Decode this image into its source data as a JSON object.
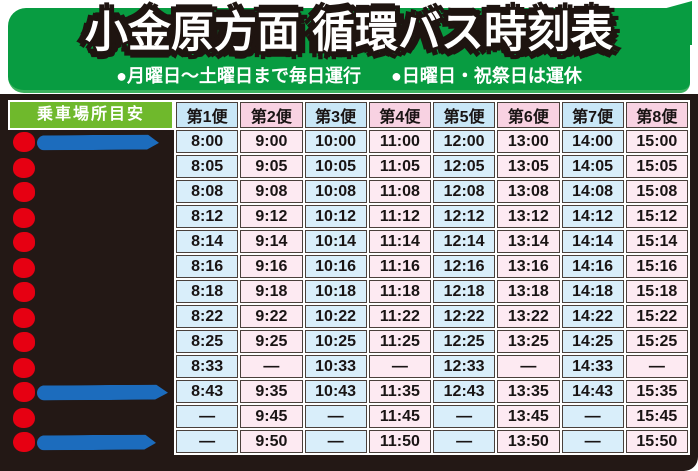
{
  "banner": {
    "title": "小金原方面 循環バス時刻表",
    "subtitle_left": "●月曜日〜土曜日まで毎日運行",
    "subtitle_right": "●日曜日・祝祭日は運休"
  },
  "timetable": {
    "location_header": "乗車場所目安",
    "trip_headers": [
      "第1便",
      "第2便",
      "第3便",
      "第4便",
      "第5便",
      "第6便",
      "第7便",
      "第8便"
    ],
    "no_service_symbol": "—",
    "rows": [
      {
        "stop_marker": true,
        "stop_name_redacted": true,
        "redaction_width": 122,
        "times": [
          "8:00",
          "9:00",
          "10:00",
          "11:00",
          "12:00",
          "13:00",
          "14:00",
          "15:00"
        ]
      },
      {
        "stop_marker": true,
        "stop_name_redacted": false,
        "times": [
          "8:05",
          "9:05",
          "10:05",
          "11:05",
          "12:05",
          "13:05",
          "14:05",
          "15:05"
        ]
      },
      {
        "stop_marker": true,
        "stop_name_redacted": false,
        "times": [
          "8:08",
          "9:08",
          "10:08",
          "11:08",
          "12:08",
          "13:08",
          "14:08",
          "15:08"
        ]
      },
      {
        "stop_marker": true,
        "stop_name_redacted": false,
        "times": [
          "8:12",
          "9:12",
          "10:12",
          "11:12",
          "12:12",
          "13:12",
          "14:12",
          "15:12"
        ]
      },
      {
        "stop_marker": true,
        "stop_name_redacted": false,
        "times": [
          "8:14",
          "9:14",
          "10:14",
          "11:14",
          "12:14",
          "13:14",
          "14:14",
          "15:14"
        ]
      },
      {
        "stop_marker": true,
        "stop_name_redacted": false,
        "times": [
          "8:16",
          "9:16",
          "10:16",
          "11:16",
          "12:16",
          "13:16",
          "14:16",
          "15:16"
        ]
      },
      {
        "stop_marker": true,
        "stop_name_redacted": false,
        "times": [
          "8:18",
          "9:18",
          "10:18",
          "11:18",
          "12:18",
          "13:18",
          "14:18",
          "15:18"
        ]
      },
      {
        "stop_marker": true,
        "stop_name_redacted": false,
        "times": [
          "8:22",
          "9:22",
          "10:22",
          "11:22",
          "12:22",
          "13:22",
          "14:22",
          "15:22"
        ]
      },
      {
        "stop_marker": true,
        "stop_name_redacted": false,
        "times": [
          "8:25",
          "9:25",
          "10:25",
          "11:25",
          "12:25",
          "13:25",
          "14:25",
          "15:25"
        ]
      },
      {
        "stop_marker": true,
        "stop_name_redacted": false,
        "times": [
          "8:33",
          "—",
          "10:33",
          "—",
          "12:33",
          "—",
          "14:33",
          "—"
        ]
      },
      {
        "stop_marker": true,
        "stop_name_redacted": true,
        "redaction_width": 131,
        "times": [
          "8:43",
          "9:35",
          "10:43",
          "11:35",
          "12:43",
          "13:35",
          "14:43",
          "15:35"
        ]
      },
      {
        "stop_marker": true,
        "stop_name_redacted": false,
        "times": [
          "—",
          "9:45",
          "—",
          "11:45",
          "—",
          "13:45",
          "—",
          "15:45"
        ]
      },
      {
        "stop_marker": true,
        "stop_name_redacted": true,
        "redaction_width": 119,
        "times": [
          "—",
          "9:50",
          "—",
          "11:50",
          "—",
          "13:50",
          "—",
          "15:50"
        ]
      }
    ]
  },
  "colors": {
    "banner_green": "#089c41",
    "location_header_green": "#6fb92c",
    "odd_trip_header_bg": "#c9e7f7",
    "even_trip_header_bg": "#f8d2e2",
    "odd_trip_cell_bg": "#d9eefa",
    "even_trip_cell_bg": "#fdeaf2",
    "panel_dark": "#231815",
    "stop_dot_red": "#e60012",
    "redaction_blue": "#1c6cbd"
  }
}
